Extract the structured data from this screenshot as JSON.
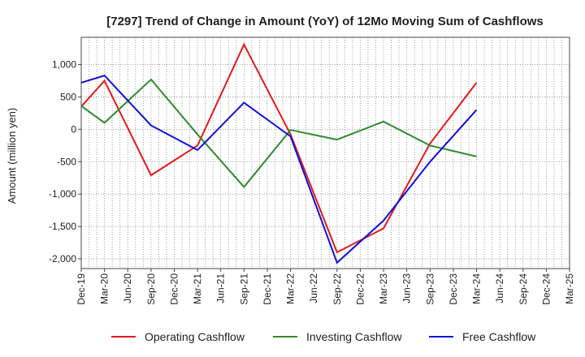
{
  "chart_data": {
    "type": "line",
    "title": "[7297]  Trend of Change in Amount (YoY) of 12Mo Moving Sum of Cashflows",
    "xlabel": "",
    "ylabel": "Amount (million yen)",
    "ylim": [
      -2150,
      1420
    ],
    "yticks": [
      1000,
      500,
      0,
      -500,
      -1000,
      -1500,
      -2000
    ],
    "ytick_labels": [
      "1,000",
      "500",
      "0",
      "-500",
      "-1,000",
      "-1,500",
      "-2,000"
    ],
    "categories": [
      "Dec-19",
      "Mar-20",
      "Jun-20",
      "Sep-20",
      "Dec-20",
      "Mar-21",
      "Jun-21",
      "Sep-21",
      "Dec-21",
      "Mar-22",
      "Jun-22",
      "Sep-22",
      "Dec-22",
      "Mar-23",
      "Jun-23",
      "Sep-23",
      "Dec-23",
      "Mar-24",
      "Jun-24",
      "Sep-24",
      "Dec-24",
      "Mar-25"
    ],
    "grid": true,
    "legend_position": "bottom",
    "series": [
      {
        "name": "Operating Cashflow",
        "color": "#e31a1c",
        "values": [
          350,
          750,
          null,
          -710,
          null,
          -250,
          null,
          1310,
          null,
          -80,
          null,
          -1900,
          null,
          -1530,
          null,
          -220,
          null,
          720,
          null,
          null,
          null,
          null
        ]
      },
      {
        "name": "Investing Cashflow",
        "color": "#2e8b2e",
        "values": [
          360,
          100,
          null,
          770,
          null,
          -80,
          null,
          -890,
          null,
          -10,
          null,
          -160,
          null,
          120,
          null,
          -250,
          null,
          -420,
          null,
          null,
          null,
          null
        ]
      },
      {
        "name": "Free Cashflow",
        "color": "#1010dd",
        "values": [
          720,
          830,
          null,
          60,
          null,
          -320,
          null,
          410,
          null,
          -110,
          null,
          -2060,
          null,
          -1410,
          null,
          -500,
          null,
          300,
          null,
          null,
          null,
          null
        ]
      }
    ]
  }
}
